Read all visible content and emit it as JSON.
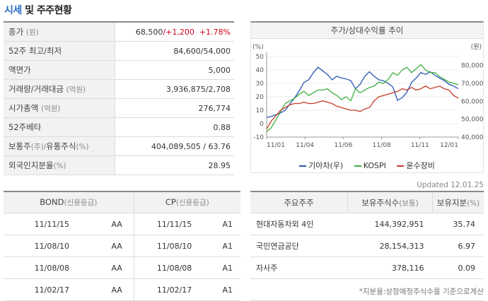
{
  "title": {
    "prefix": "시세",
    "rest": " 및 주주현황"
  },
  "stats": [
    {
      "label": "종가",
      "unit": "(원)",
      "value": "68,500",
      "change": "/+1,200",
      "pct": "+1.78%"
    },
    {
      "label": "52주 최고/최저",
      "unit": "",
      "value": "84,600/54,000"
    },
    {
      "label": "액면가",
      "unit": "",
      "value": "5,000"
    },
    {
      "label": "거래량/거래대금",
      "unit": "(억원)",
      "value": "3,936,875/2,708"
    },
    {
      "label": "시가총액",
      "unit": "(억원)",
      "value": "276,774"
    },
    {
      "label": "52주베타",
      "unit": "",
      "value": "0.88"
    },
    {
      "label": "보통주",
      "unit": "(주)/",
      "label2": "유통주식",
      "unit2": "(%)",
      "value": "404,089,505 / 63.76"
    },
    {
      "label": "외국인지분율",
      "unit": "(%)",
      "value": "28.95"
    }
  ],
  "chart_header": "주가/상대수익률 추이",
  "chart_data": {
    "type": "line",
    "x_ticks": [
      "11/01",
      "11/04",
      "11/06",
      "11/08",
      "11/11",
      "12/01"
    ],
    "left_axis": {
      "label": "(%)",
      "ticks": [
        50,
        40,
        30,
        20,
        10,
        0,
        -10
      ],
      "ylim": [
        -10,
        50
      ]
    },
    "right_axis": {
      "label": "(원)",
      "ticks": [
        "80,000",
        "70,000",
        "60,000",
        "50,000",
        "40,000"
      ],
      "ylim": [
        40000,
        85000
      ]
    },
    "series": [
      {
        "name": "기아차(우)",
        "color": "#2b55b5",
        "axis": "right",
        "values": [
          51000,
          51500,
          52500,
          53500,
          55000,
          58500,
          62000,
          66000,
          70500,
          72000,
          76000,
          79000,
          77000,
          75000,
          72000,
          74000,
          73000,
          72500,
          71500,
          67000,
          69500,
          74000,
          76500,
          74000,
          72000,
          71500,
          70000,
          68000,
          60500,
          62000,
          65000,
          70500,
          73000,
          76000,
          75000,
          76500,
          74500,
          73000,
          71500,
          69500,
          68500,
          67000
        ]
      },
      {
        "name": "KOSPI",
        "color": "#3fae3f",
        "axis": "left",
        "values": [
          -6,
          -3,
          3,
          9,
          15,
          17,
          19,
          22,
          24,
          21,
          23,
          25,
          25,
          26,
          23,
          21,
          18,
          20,
          17,
          26,
          23,
          25,
          27,
          28,
          31,
          30,
          33,
          38,
          36,
          40,
          42,
          38,
          41,
          44,
          40,
          38,
          38,
          35,
          33,
          31,
          30,
          29
        ]
      },
      {
        "name": "윤수장비",
        "color": "#c63c2a",
        "axis": "left",
        "values": [
          -4,
          2,
          6,
          10,
          12,
          14,
          15,
          15,
          16,
          15,
          15,
          16,
          17,
          16,
          15,
          13,
          12,
          11,
          10,
          10,
          9,
          11,
          12,
          17,
          20,
          21,
          22,
          23,
          24,
          26,
          25,
          27,
          25,
          26,
          28,
          26,
          27,
          28,
          26,
          25,
          21,
          19
        ]
      }
    ]
  },
  "updated": "Updated 12.01.25",
  "bond": {
    "headers": [
      {
        "label": "BOND",
        "unit": "(신용등급)"
      },
      {
        "label": "CP",
        "unit": "(신용등급)"
      }
    ],
    "rows": [
      [
        "11/11/15",
        "AA",
        "11/11/15",
        "A1"
      ],
      [
        "11/08/10",
        "AA",
        "11/08/10",
        "A1"
      ],
      [
        "11/08/08",
        "AA",
        "11/08/08",
        "A1"
      ],
      [
        "11/02/17",
        "AA",
        "11/02/17",
        "A1"
      ]
    ]
  },
  "holders": {
    "headers": [
      {
        "label": "주요주주",
        "unit": ""
      },
      {
        "label": "보유주식수",
        "unit": "(보통)"
      },
      {
        "label": "보유지분",
        "unit": "(%)"
      }
    ],
    "rows": [
      [
        "현대자동차외 4인",
        "144,392,951",
        "35.74"
      ],
      [
        "국민연금공단",
        "28,154,313",
        "6.97"
      ],
      [
        "자사주",
        "378,116",
        "0.09"
      ]
    ]
  },
  "footnote": "*지분율:상장예정주식수를 기준으로계산"
}
